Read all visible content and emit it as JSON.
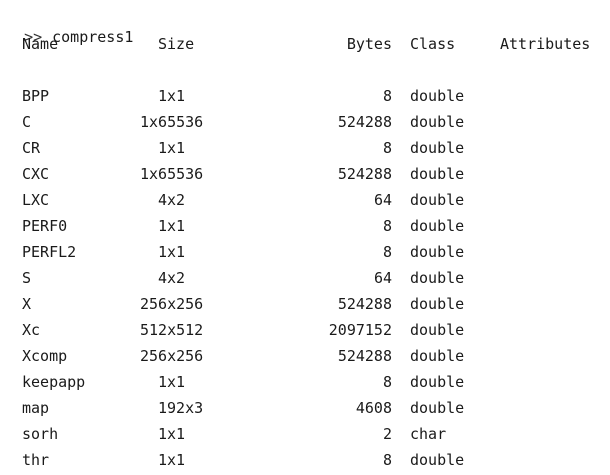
{
  "console": {
    "prompt": ">>",
    "command": "compress1"
  },
  "table": {
    "headers": {
      "name": "Name",
      "size": "Size",
      "bytes": "Bytes",
      "class": "Class",
      "attributes": "Attributes"
    },
    "rows": [
      {
        "name": "BPP",
        "size": "1x1",
        "bytes": "8",
        "class": "double"
      },
      {
        "name": "C",
        "size": "1x65536",
        "bytes": "524288",
        "class": "double"
      },
      {
        "name": "CR",
        "size": "1x1",
        "bytes": "8",
        "class": "double"
      },
      {
        "name": "CXC",
        "size": "1x65536",
        "bytes": "524288",
        "class": "double"
      },
      {
        "name": "LXC",
        "size": "4x2",
        "bytes": "64",
        "class": "double"
      },
      {
        "name": "PERF0",
        "size": "1x1",
        "bytes": "8",
        "class": "double"
      },
      {
        "name": "PERFL2",
        "size": "1x1",
        "bytes": "8",
        "class": "double"
      },
      {
        "name": "S",
        "size": "4x2",
        "bytes": "64",
        "class": "double"
      },
      {
        "name": "X",
        "size": "256x256",
        "bytes": "524288",
        "class": "double"
      },
      {
        "name": "Xc",
        "size": "512x512",
        "bytes": "2097152",
        "class": "double"
      },
      {
        "name": "Xcomp",
        "size": "256x256",
        "bytes": "524288",
        "class": "double"
      },
      {
        "name": "keepapp",
        "size": "1x1",
        "bytes": "8",
        "class": "double"
      },
      {
        "name": "map",
        "size": "192x3",
        "bytes": "4608",
        "class": "double"
      },
      {
        "name": "sorh",
        "size": "1x1",
        "bytes": "2",
        "class": "char"
      },
      {
        "name": "thr",
        "size": "1x1",
        "bytes": "8",
        "class": "double"
      }
    ]
  }
}
